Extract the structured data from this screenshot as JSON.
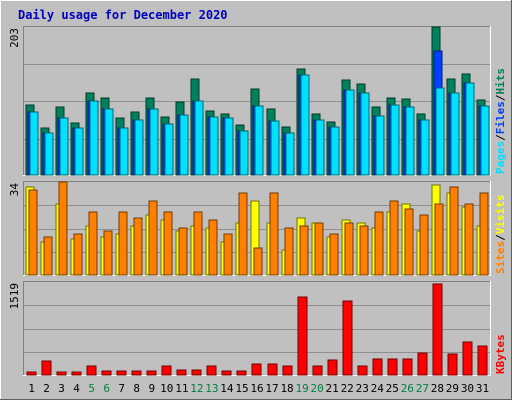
{
  "chart_data": [
    {
      "type": "bar",
      "title": "Daily usage for December 2020",
      "panel": "hits-files-pages",
      "ymax_label": "203",
      "ylim": [
        0,
        203
      ],
      "categories": [
        "1",
        "2",
        "3",
        "4",
        "5",
        "6",
        "7",
        "8",
        "9",
        "10",
        "11",
        "12",
        "13",
        "14",
        "15",
        "16",
        "17",
        "18",
        "19",
        "20",
        "21",
        "22",
        "23",
        "24",
        "25",
        "26",
        "27",
        "28",
        "29",
        "30",
        "31"
      ],
      "series": [
        {
          "name": "Hits",
          "color": "#00805c",
          "values": [
            96,
            64,
            93,
            71,
            112,
            106,
            78,
            87,
            106,
            79,
            100,
            131,
            88,
            84,
            69,
            118,
            90,
            66,
            145,
            84,
            73,
            130,
            125,
            93,
            106,
            104,
            83,
            203,
            131,
            138,
            103
          ]
        },
        {
          "name": "Files",
          "color": "#0040ff",
          "values": [
            86,
            58,
            78,
            65,
            102,
            90,
            64,
            75,
            90,
            70,
            82,
            101,
            80,
            78,
            61,
            95,
            74,
            58,
            137,
            75,
            66,
            116,
            112,
            81,
            96,
            93,
            76,
            170,
            113,
            126,
            95
          ]
        },
        {
          "name": "Pages",
          "color": "#00e0ff",
          "values": [
            86,
            58,
            78,
            65,
            102,
            90,
            64,
            75,
            90,
            70,
            82,
            101,
            80,
            78,
            61,
            95,
            74,
            58,
            137,
            75,
            66,
            116,
            112,
            81,
            96,
            93,
            76,
            120,
            113,
            126,
            95
          ]
        }
      ]
    },
    {
      "type": "bar",
      "panel": "visits-sites",
      "ymax_label": "34",
      "ylim": [
        0,
        34
      ],
      "categories": [
        "1",
        "2",
        "3",
        "4",
        "5",
        "6",
        "7",
        "8",
        "9",
        "10",
        "11",
        "12",
        "13",
        "14",
        "15",
        "16",
        "17",
        "18",
        "19",
        "20",
        "21",
        "22",
        "23",
        "24",
        "25",
        "26",
        "27",
        "28",
        "29",
        "30",
        "31"
      ],
      "series": [
        {
          "name": "Visits",
          "color": "#ffff00",
          "values": [
            32,
            12,
            26,
            13,
            18,
            14,
            15,
            18,
            22,
            20,
            16,
            18,
            17,
            12,
            19,
            27,
            19,
            9,
            21,
            19,
            14,
            20,
            19,
            17,
            23,
            26,
            16,
            33,
            30,
            25,
            18
          ]
        },
        {
          "name": "Sites",
          "color": "#ff8000",
          "values": [
            31,
            14,
            34,
            15,
            23,
            16,
            23,
            21,
            27,
            23,
            17,
            23,
            20,
            15,
            30,
            10,
            30,
            17,
            18,
            19,
            15,
            19,
            18,
            23,
            27,
            24,
            22,
            26,
            32,
            26,
            30
          ]
        }
      ]
    },
    {
      "type": "bar",
      "panel": "kbytes",
      "ymax_label": "1519",
      "ylim": [
        0,
        1519
      ],
      "categories": [
        "1",
        "2",
        "3",
        "4",
        "5",
        "6",
        "7",
        "8",
        "9",
        "10",
        "11",
        "12",
        "13",
        "14",
        "15",
        "16",
        "17",
        "18",
        "19",
        "20",
        "21",
        "22",
        "23",
        "24",
        "25",
        "26",
        "27",
        "28",
        "29",
        "30",
        "31"
      ],
      "series": [
        {
          "name": "KBytes",
          "color": "#ff0000",
          "values": [
            55,
            232,
            55,
            55,
            140,
            62,
            62,
            62,
            62,
            140,
            78,
            78,
            155,
            62,
            62,
            187,
            187,
            155,
            1270,
            155,
            248,
            1208,
            155,
            265,
            265,
            265,
            358,
            1485,
            342,
            535,
            470
          ]
        }
      ]
    }
  ],
  "axis_day_labels": [
    "1",
    "2",
    "3",
    "4",
    "5",
    "6",
    "7",
    "8",
    "9",
    "10",
    "11",
    "12",
    "13",
    "14",
    "15",
    "16",
    "17",
    "18",
    "19",
    "20",
    "21",
    "22",
    "23",
    "24",
    "25",
    "26",
    "27",
    "28",
    "29",
    "30",
    "31"
  ],
  "weekend_days": [
    5,
    6,
    12,
    13,
    19,
    20,
    26,
    27
  ],
  "colors": {
    "background": "#c0c0c0",
    "panel": "#c0c0c0",
    "gridline": "#909090",
    "title": "#0000c0",
    "weekend_label": "#008040",
    "weekday_label": "#000000"
  }
}
